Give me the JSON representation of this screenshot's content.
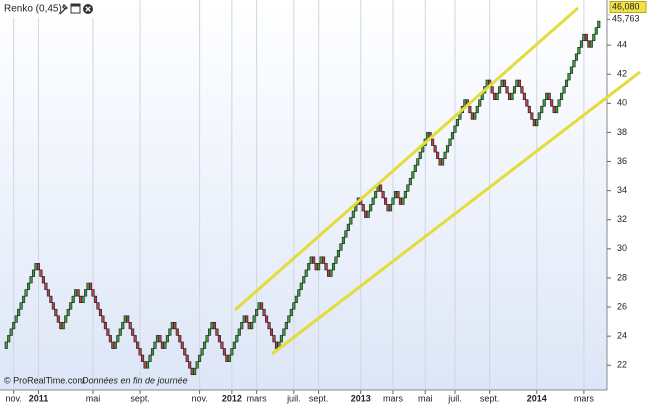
{
  "chart_data": {
    "type": "renko",
    "title": "Renko (0,45)",
    "source": "© ProRealTime.com",
    "note": "Données en fin de journée",
    "up_color": "#3c9c3c",
    "down_color": "#b8404e",
    "outline_color": "#1a1a1a",
    "ylim": [
      20.3,
      47.1
    ],
    "yticks": [
      22,
      24,
      26,
      28,
      30,
      32,
      34,
      36,
      38,
      40,
      42,
      44
    ],
    "last_labels": [
      {
        "value": 46.08,
        "label": "46,080"
      },
      {
        "value": 45.763,
        "label": "45,763"
      }
    ],
    "categories": [
      null,
      null,
      null,
      null,
      "nov.",
      null,
      null,
      null,
      null,
      null,
      null,
      null,
      null,
      null,
      "2011",
      null,
      null,
      null,
      null,
      null,
      null,
      null,
      null,
      null,
      null,
      null,
      null,
      null,
      null,
      null,
      null,
      null,
      null,
      null,
      null,
      null,
      "mai",
      null,
      null,
      null,
      null,
      null,
      null,
      null,
      null,
      null,
      null,
      null,
      null,
      null,
      null,
      null,
      null,
      null,
      null,
      "sept.",
      null,
      null,
      null,
      null,
      null,
      null,
      null,
      null,
      null,
      null,
      null,
      null,
      null,
      null,
      null,
      null,
      null,
      null,
      null,
      null,
      null,
      null,
      null,
      "nov.",
      null,
      null,
      null,
      null,
      null,
      null,
      null,
      null,
      null,
      null,
      null,
      null,
      "2012",
      null,
      null,
      null,
      null,
      null,
      null,
      null,
      null,
      null,
      "mars",
      null,
      null,
      null,
      null,
      null,
      null,
      null,
      null,
      null,
      null,
      null,
      null,
      null,
      null,
      "juil.",
      null,
      null,
      null,
      null,
      null,
      null,
      null,
      null,
      null,
      "sept.",
      null,
      null,
      null,
      null,
      null,
      null,
      null,
      null,
      null,
      null,
      null,
      null,
      null,
      null,
      null,
      null,
      "2013",
      null,
      null,
      null,
      null,
      null,
      null,
      null,
      null,
      null,
      null,
      null,
      null,
      "mars",
      null,
      null,
      null,
      null,
      null,
      null,
      null,
      null,
      null,
      null,
      null,
      null,
      "mai",
      null,
      null,
      null,
      null,
      null,
      null,
      null,
      null,
      null,
      null,
      null,
      "juil.",
      null,
      null,
      null,
      null,
      null,
      null,
      null,
      null,
      null,
      null,
      null,
      null,
      null,
      "sept.",
      null,
      null,
      null,
      null,
      null,
      null,
      null,
      null,
      null,
      null,
      null,
      null,
      null,
      null,
      null,
      null,
      null,
      null,
      "2014",
      null,
      null,
      null,
      null,
      null,
      null,
      null,
      null,
      null,
      null,
      null,
      null,
      null,
      null,
      null,
      null,
      null,
      null,
      "mars",
      null,
      null,
      null,
      null,
      null,
      null
    ],
    "values": [
      23.15,
      23.6,
      24.05,
      24.5,
      24.95,
      25.4,
      25.85,
      26.3,
      26.75,
      27.2,
      27.65,
      28.1,
      28.55,
      29.0,
      28.55,
      28.1,
      27.65,
      27.2,
      26.75,
      26.3,
      25.85,
      25.4,
      24.95,
      24.5,
      24.95,
      25.4,
      25.85,
      26.3,
      26.75,
      27.2,
      26.75,
      26.3,
      26.75,
      27.2,
      27.65,
      27.2,
      26.75,
      26.3,
      25.85,
      25.4,
      24.95,
      24.5,
      24.05,
      23.6,
      23.15,
      23.6,
      24.05,
      24.5,
      24.95,
      25.4,
      24.95,
      24.5,
      24.05,
      23.6,
      23.15,
      22.7,
      22.25,
      21.8,
      22.25,
      22.7,
      23.15,
      23.6,
      24.05,
      23.6,
      23.15,
      23.6,
      24.05,
      24.5,
      24.95,
      24.5,
      24.05,
      23.6,
      23.15,
      22.7,
      22.25,
      21.8,
      21.35,
      21.8,
      22.25,
      22.7,
      23.15,
      23.6,
      24.05,
      24.5,
      24.95,
      24.5,
      24.05,
      23.6,
      23.15,
      22.7,
      22.25,
      22.7,
      23.15,
      23.6,
      24.05,
      24.5,
      24.95,
      25.4,
      24.95,
      24.5,
      24.95,
      25.4,
      25.85,
      26.3,
      25.85,
      25.4,
      24.95,
      24.5,
      24.05,
      23.6,
      23.15,
      23.6,
      24.05,
      24.5,
      24.95,
      25.4,
      25.85,
      26.3,
      26.75,
      27.2,
      27.65,
      28.1,
      28.55,
      29.0,
      29.45,
      29.0,
      28.55,
      29.0,
      29.45,
      29.0,
      28.55,
      28.1,
      28.55,
      29.0,
      29.45,
      29.9,
      30.35,
      30.8,
      31.25,
      31.7,
      32.15,
      32.6,
      33.05,
      33.5,
      33.05,
      32.6,
      32.15,
      32.6,
      33.05,
      33.5,
      33.95,
      34.4,
      33.95,
      33.5,
      33.05,
      32.6,
      33.05,
      33.5,
      33.95,
      33.5,
      33.05,
      33.5,
      33.95,
      34.4,
      34.85,
      35.3,
      35.75,
      36.2,
      36.65,
      37.1,
      37.55,
      38.0,
      37.55,
      37.1,
      36.65,
      36.2,
      35.75,
      36.2,
      36.65,
      37.1,
      37.55,
      38.0,
      38.45,
      38.9,
      39.35,
      39.8,
      40.25,
      39.8,
      39.35,
      38.9,
      39.35,
      39.8,
      40.25,
      40.7,
      41.15,
      41.6,
      41.15,
      40.7,
      40.25,
      40.7,
      41.15,
      41.6,
      41.15,
      40.7,
      40.25,
      40.7,
      41.15,
      41.6,
      41.15,
      40.7,
      40.25,
      39.8,
      39.35,
      38.9,
      38.45,
      38.9,
      39.35,
      39.8,
      40.25,
      40.7,
      40.25,
      39.8,
      39.35,
      39.8,
      40.25,
      40.7,
      41.15,
      41.6,
      42.05,
      42.5,
      42.95,
      43.4,
      43.85,
      44.3,
      44.75,
      44.3,
      43.85,
      44.3,
      44.75,
      45.2,
      45.65
    ]
  }
}
